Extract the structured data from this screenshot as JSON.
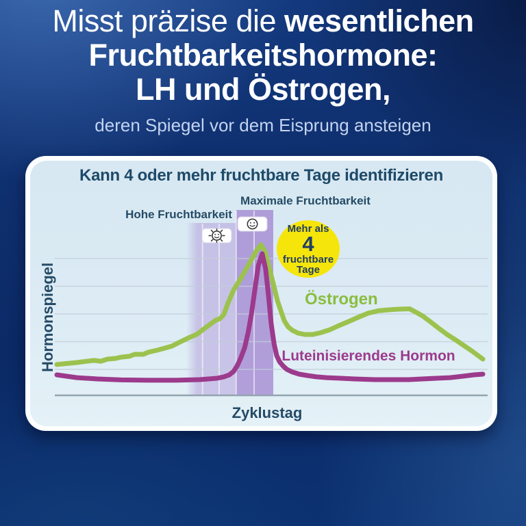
{
  "header": {
    "line1_regular": "Misst präzise die ",
    "line1_bold": "wesentlichen",
    "line2": "Fruchtbarkeitshormone:",
    "line3": "LH und Östrogen,",
    "subtitle": "deren Spiegel vor dem Eisprung ansteigen"
  },
  "card": {
    "title": "Kann 4 oder mehr fruchtbare Tage identifizieren",
    "badge": {
      "line1": "Mehr als",
      "number": "4",
      "line2": "fruchtbare",
      "line3": "Tage",
      "bg_color": "#f6e50a",
      "text_color": "#203d66"
    }
  },
  "colors": {
    "background_blue": "#0e2e6c",
    "card_bg": "#d9e9f3",
    "navy_text": "#1e4a69",
    "grid": "#c3ced9",
    "axis": "#94a3b0",
    "estrogen_green": "#9cc24e",
    "lh_purple": "#9c3a8c",
    "band_light_rgb": "177,153,217",
    "band_dark_rgb": "158,128,206"
  },
  "icons": {
    "flashing_smiley": "flashing-smiley-icon (high fertility test result)",
    "static_smiley": "static-smiley-icon (peak fertility test result)"
  },
  "chart_data": {
    "type": "line",
    "title": "Kann 4 oder mehr fruchtbare Tage identifizieren",
    "xlabel": "Zyklustag",
    "ylabel": "Hormonspiegel",
    "x_range_norm": [
      0,
      1
    ],
    "y_range_norm": [
      0,
      1
    ],
    "grid": "horizontal gridlines only, no tick labels (qualitative axes)",
    "legend_position": "inline labels next to curves",
    "annotation_badge": "Mehr als 4 fruchtbare Tage",
    "series": [
      {
        "name": "Östrogen",
        "color": "#9cc24e",
        "points": [
          [
            0,
            0.188
          ],
          [
            0.047,
            0.2
          ],
          [
            0.087,
            0.213
          ],
          [
            0.103,
            0.208
          ],
          [
            0.119,
            0.221
          ],
          [
            0.138,
            0.225
          ],
          [
            0.151,
            0.233
          ],
          [
            0.17,
            0.238
          ],
          [
            0.183,
            0.25
          ],
          [
            0.203,
            0.25
          ],
          [
            0.215,
            0.263
          ],
          [
            0.235,
            0.275
          ],
          [
            0.254,
            0.288
          ],
          [
            0.27,
            0.3
          ],
          [
            0.289,
            0.325
          ],
          [
            0.309,
            0.35
          ],
          [
            0.328,
            0.371
          ],
          [
            0.347,
            0.408
          ],
          [
            0.36,
            0.433
          ],
          [
            0.373,
            0.458
          ],
          [
            0.383,
            0.467
          ],
          [
            0.392,
            0.492
          ],
          [
            0.402,
            0.563
          ],
          [
            0.415,
            0.642
          ],
          [
            0.429,
            0.7
          ],
          [
            0.444,
            0.767
          ],
          [
            0.458,
            0.833
          ],
          [
            0.469,
            0.883
          ],
          [
            0.479,
            0.917
          ],
          [
            0.489,
            0.875
          ],
          [
            0.498,
            0.783
          ],
          [
            0.508,
            0.679
          ],
          [
            0.518,
            0.575
          ],
          [
            0.526,
            0.513
          ],
          [
            0.534,
            0.454
          ],
          [
            0.543,
            0.417
          ],
          [
            0.553,
            0.396
          ],
          [
            0.566,
            0.379
          ],
          [
            0.582,
            0.371
          ],
          [
            0.601,
            0.371
          ],
          [
            0.621,
            0.383
          ],
          [
            0.641,
            0.4
          ],
          [
            0.662,
            0.425
          ],
          [
            0.685,
            0.45
          ],
          [
            0.707,
            0.475
          ],
          [
            0.73,
            0.5
          ],
          [
            0.754,
            0.515
          ],
          [
            0.778,
            0.521
          ],
          [
            0.802,
            0.525
          ],
          [
            0.828,
            0.527
          ],
          [
            0.842,
            0.508
          ],
          [
            0.859,
            0.483
          ],
          [
            0.878,
            0.446
          ],
          [
            0.897,
            0.408
          ],
          [
            0.916,
            0.371
          ],
          [
            0.936,
            0.338
          ],
          [
            0.955,
            0.304
          ],
          [
            0.974,
            0.271
          ],
          [
            0.987,
            0.246
          ],
          [
            1,
            0.221
          ]
        ]
      },
      {
        "name": "Luteinisierendes Hormon",
        "color": "#9c3a8c",
        "points": [
          [
            0,
            0.125
          ],
          [
            0.047,
            0.108
          ],
          [
            0.095,
            0.1
          ],
          [
            0.151,
            0.094
          ],
          [
            0.215,
            0.092
          ],
          [
            0.28,
            0.092
          ],
          [
            0.336,
            0.096
          ],
          [
            0.376,
            0.104
          ],
          [
            0.392,
            0.113
          ],
          [
            0.405,
            0.125
          ],
          [
            0.415,
            0.146
          ],
          [
            0.424,
            0.183
          ],
          [
            0.432,
            0.229
          ],
          [
            0.441,
            0.292
          ],
          [
            0.449,
            0.383
          ],
          [
            0.457,
            0.5
          ],
          [
            0.465,
            0.646
          ],
          [
            0.473,
            0.792
          ],
          [
            0.482,
            0.863
          ],
          [
            0.49,
            0.771
          ],
          [
            0.497,
            0.604
          ],
          [
            0.503,
            0.438
          ],
          [
            0.51,
            0.313
          ],
          [
            0.516,
            0.242
          ],
          [
            0.523,
            0.204
          ],
          [
            0.531,
            0.179
          ],
          [
            0.54,
            0.158
          ],
          [
            0.553,
            0.142
          ],
          [
            0.569,
            0.129
          ],
          [
            0.588,
            0.121
          ],
          [
            0.609,
            0.113
          ],
          [
            0.633,
            0.108
          ],
          [
            0.666,
            0.104
          ],
          [
            0.698,
            0.1
          ],
          [
            0.746,
            0.096
          ],
          [
            0.826,
            0.096
          ],
          [
            0.891,
            0.104
          ],
          [
            0.923,
            0.108
          ],
          [
            0.955,
            0.117
          ],
          [
            0.979,
            0.125
          ],
          [
            1,
            0.129
          ]
        ]
      }
    ],
    "bands": [
      {
        "key": "high",
        "label": "Hohe Fruchtbarkeit",
        "u0": 0.304,
        "u1": 0.421,
        "alpha": 0.5,
        "fade_left": true
      },
      {
        "key": "peak",
        "label": "Maximale Fruchtbarkeit",
        "u0": 0.421,
        "u1": 0.508,
        "alpha": 0.72,
        "fade_left": false
      }
    ],
    "day_separators": [
      {
        "u": 0.342,
        "band": "high"
      },
      {
        "u": 0.381,
        "band": "high"
      },
      {
        "u": 0.421,
        "band": "peak"
      },
      {
        "u": 0.463,
        "band": "peak"
      }
    ]
  }
}
